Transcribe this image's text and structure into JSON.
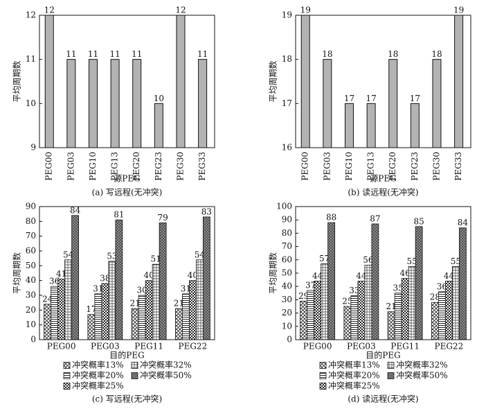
{
  "chart_data": [
    {
      "type": "bar",
      "ylabel": "平均周期数",
      "xlabel": "源PEG",
      "caption": "(a) 写远程(无冲突)",
      "categories": [
        "PEG00",
        "PEG03",
        "PEG10",
        "PEG13",
        "PEG20",
        "PEG23",
        "PEG30",
        "PEG33"
      ],
      "values": [
        12,
        11,
        11,
        11,
        11,
        10,
        12,
        11
      ],
      "color": "#b3b3b3",
      "ylim": [
        9,
        12
      ],
      "yticks": [
        9,
        10,
        11,
        12
      ]
    },
    {
      "type": "bar",
      "ylabel": "平均周期数",
      "xlabel": "源PEG",
      "caption": "(b) 读远程(无冲突)",
      "categories": [
        "PEG00",
        "PEG03",
        "PEG10",
        "PEG13",
        "PEG20",
        "PEG23",
        "PEG30",
        "PEG33"
      ],
      "values": [
        19,
        18,
        17,
        17,
        18,
        17,
        18,
        19
      ],
      "color": "#b3b3b3",
      "ylim": [
        16,
        19
      ],
      "yticks": [
        16,
        17,
        18,
        19
      ]
    },
    {
      "type": "grouped_bar",
      "ylabel": "平均周期数",
      "xlabel": "目的PEG",
      "caption": "(c) 写远程(无冲突)",
      "categories": [
        "PEG00",
        "PEG03",
        "PEG11",
        "PEG22"
      ],
      "series": [
        {
          "name": "冲突概率13%",
          "hatch": "cross",
          "values": [
            24,
            17,
            21,
            21
          ]
        },
        {
          "name": "冲突概率20%",
          "hatch": "horizontal",
          "values": [
            36,
            31,
            30,
            31
          ]
        },
        {
          "name": "冲突概率25%",
          "hatch": "check",
          "values": [
            41,
            38,
            40,
            40
          ]
        },
        {
          "name": "冲突概率32%",
          "hatch": "grid",
          "values": [
            54,
            53,
            51,
            54
          ]
        },
        {
          "name": "冲突概率50%",
          "hatch": "dense",
          "values": [
            84,
            81,
            79,
            83
          ]
        }
      ],
      "ylim": [
        0,
        90
      ],
      "yticks": [
        0,
        10,
        20,
        30,
        40,
        50,
        60,
        70,
        80,
        90
      ]
    },
    {
      "type": "grouped_bar",
      "ylabel": "平均周期数",
      "xlabel": "目的PEG",
      "caption": "(d) 读远程(无冲突)",
      "categories": [
        "PEG00",
        "PEG03",
        "PEG11",
        "PEG22"
      ],
      "series": [
        {
          "name": "冲突概率13%",
          "hatch": "cross",
          "values": [
            29,
            25,
            21,
            28
          ]
        },
        {
          "name": "冲突概率20%",
          "hatch": "horizontal",
          "values": [
            37,
            33,
            35,
            36
          ]
        },
        {
          "name": "冲突概率25%",
          "hatch": "check",
          "values": [
            44,
            44,
            46,
            44
          ]
        },
        {
          "name": "冲突概率32%",
          "hatch": "grid",
          "values": [
            57,
            56,
            55,
            55
          ]
        },
        {
          "name": "冲突概率50%",
          "hatch": "dense",
          "values": [
            88,
            87,
            85,
            84
          ]
        }
      ],
      "ylim": [
        0,
        100
      ],
      "yticks": [
        0,
        10,
        20,
        30,
        40,
        50,
        60,
        70,
        80,
        90,
        100
      ]
    }
  ]
}
